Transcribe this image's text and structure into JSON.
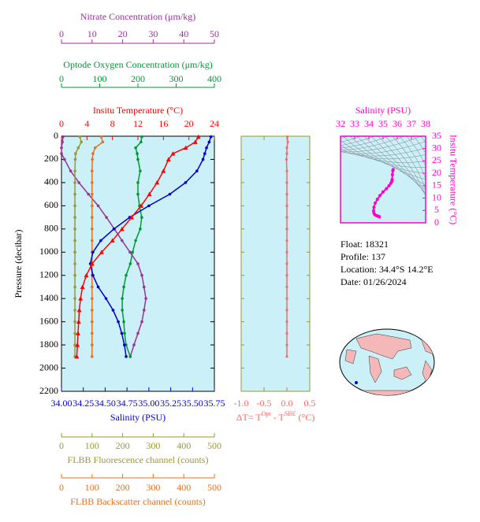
{
  "chart_data": [
    {
      "type": "profile",
      "ylabel": "Pressure (decibar)",
      "y": [
        5,
        50,
        100,
        150,
        200,
        300,
        400,
        500,
        600,
        700,
        800,
        900,
        1000,
        1100,
        1200,
        1300,
        1400,
        1500,
        1600,
        1700,
        1800,
        1900
      ],
      "ylim": [
        0,
        2200
      ],
      "invert_y": true,
      "yticks": [
        0,
        200,
        400,
        600,
        800,
        1000,
        1200,
        1400,
        1600,
        1800,
        2000,
        2200
      ],
      "background": "#ccf0f8",
      "axes": [
        {
          "label": "Nitrate Concentration (μm/kg)",
          "color": "#993399",
          "xlim": [
            0,
            50
          ],
          "xticks": [
            0,
            10,
            20,
            30,
            40,
            50
          ]
        },
        {
          "label": "Optode Oxygen Concentration (μm/kg)",
          "color": "#009933",
          "xlim": [
            0,
            400
          ],
          "xticks": [
            0,
            100,
            200,
            300,
            400
          ]
        },
        {
          "label": "Insitu Temperature (°C)",
          "color": "#ff0000",
          "xlim": [
            0,
            24
          ],
          "xticks": [
            0,
            4,
            8,
            12,
            16,
            20,
            24
          ]
        },
        {
          "label": "Salinity (PSU)",
          "color": "#0000cc",
          "xlim": [
            34,
            35.75
          ],
          "xticks": [
            {
              "value": 34,
              "label": "34.00"
            },
            {
              "value": 34.25,
              "label": "34.25"
            },
            {
              "value": 34.5,
              "label": "34.50"
            },
            {
              "value": 34.75,
              "label": "34.75"
            },
            {
              "value": 35,
              "label": "35.00"
            },
            {
              "value": 35.25,
              "label": "35.25"
            },
            {
              "value": 35.5,
              "label": "35.50"
            },
            {
              "value": 35.75,
              "label": "35.75"
            }
          ]
        },
        {
          "label": "FLBB Fluorescence channel (counts)",
          "color": "#999933",
          "xlim": [
            0,
            500
          ],
          "xticks": [
            0,
            100,
            200,
            300,
            400,
            500
          ]
        },
        {
          "label": "FLBB Backscatter channel (counts)",
          "color": "#e87020",
          "xlim": [
            0,
            500
          ],
          "xticks": [
            0,
            100,
            200,
            300,
            400,
            500
          ]
        }
      ],
      "series": [
        {
          "x_axis": 0,
          "color": "#993399",
          "marker": "circle",
          "values": [
            0.5,
            0.3,
            0,
            0,
            1,
            3,
            5.7,
            8.8,
            12,
            14.7,
            17.3,
            19.8,
            22.4,
            25,
            26.3,
            27,
            27.6,
            27,
            26.3,
            25,
            23.7,
            22.5
          ]
        },
        {
          "x_axis": 1,
          "color": "#009933",
          "marker": "circle",
          "values": [
            210,
            208,
            194,
            198,
            200,
            206,
            200,
            200,
            204,
            210,
            206,
            194,
            186,
            180,
            169,
            163,
            159,
            159,
            163,
            165,
            169,
            180
          ]
        },
        {
          "x_axis": 4,
          "color": "#999933",
          "marker": "circle",
          "values": [
            60,
            65,
            55,
            46,
            45,
            44,
            44,
            44,
            44,
            44,
            44,
            44,
            44,
            44,
            44,
            44,
            44,
            44,
            44,
            44,
            44,
            44
          ]
        },
        {
          "x_axis": 5,
          "color": "#e87020",
          "marker": "circle",
          "values": [
            130,
            135,
            110,
            103,
            101,
            100,
            100,
            100,
            100,
            100,
            100,
            100,
            100,
            100,
            100,
            100,
            100,
            100,
            100,
            100,
            100,
            100
          ]
        },
        {
          "x_axis": 3,
          "color": "#0000cc",
          "marker": "circle",
          "values": [
            35.71,
            35.69,
            35.66,
            35.64,
            35.62,
            35.55,
            35.42,
            35.24,
            35.0,
            34.78,
            34.6,
            34.45,
            34.36,
            34.33,
            34.36,
            34.42,
            34.51,
            34.59,
            34.65,
            34.69,
            34.72,
            34.74
          ]
        },
        {
          "x_axis": 2,
          "color": "#ff0000",
          "marker": "triangle",
          "values": [
            21.5,
            21.0,
            19.5,
            17.5,
            16.8,
            16.0,
            15.0,
            13.8,
            12.5,
            11.0,
            9.5,
            8.0,
            6.3,
            4.8,
            3.9,
            3.3,
            3.0,
            2.8,
            2.7,
            2.6,
            2.5,
            2.4
          ]
        }
      ]
    },
    {
      "type": "profile",
      "xlabel": [
        "ΔT= T",
        "Opt",
        " - T",
        "SBE",
        " (°C)"
      ],
      "xlim": [
        -1,
        0.5
      ],
      "xticks": [
        {
          "value": -1,
          "label": "-1.0"
        },
        {
          "value": -0.5,
          "label": "-0.5"
        },
        {
          "value": 0,
          "label": "0.0"
        },
        {
          "value": 0.5,
          "label": "0.5"
        }
      ],
      "color": "#ff6666",
      "axis_color": "#999933",
      "values": [
        0.01,
        0.02,
        0.0,
        0.0,
        -0.01,
        0.0,
        0.0,
        0.0,
        0.0,
        0.0,
        0.0,
        0.0,
        0.0,
        0.0,
        0.0,
        0.0,
        0.0,
        0.0,
        0.0,
        0.0,
        0.0,
        0.0
      ]
    },
    {
      "type": "scatter",
      "title": "Salinity (PSU)",
      "ylabel": "Insitu Temperature (°C)",
      "xlim": [
        32,
        38
      ],
      "xticks": [
        32,
        33,
        34,
        35,
        36,
        37,
        38
      ],
      "ylim": [
        0,
        35
      ],
      "yticks": [
        0,
        5,
        10,
        15,
        20,
        25,
        30,
        35
      ],
      "color": "#ff00cc"
    },
    {
      "type": "text",
      "lines": [
        "Float:  18321",
        "Profile:  137",
        "Location:  34.4°S  14.2°E",
        "Date:  01/26/2024"
      ]
    }
  ]
}
